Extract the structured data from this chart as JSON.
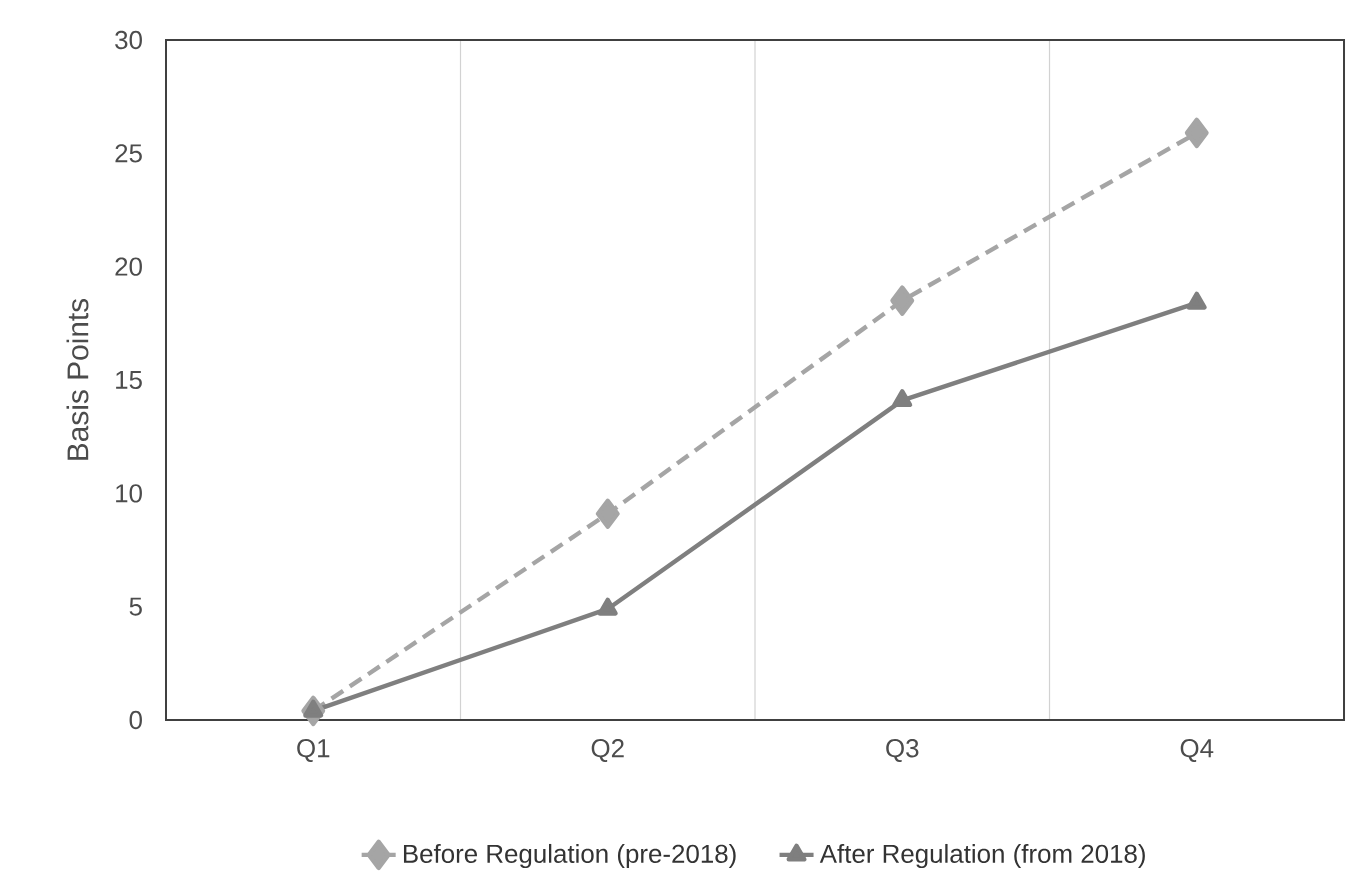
{
  "chart_data": {
    "type": "line",
    "ylabel": "Basis Points",
    "categories": [
      "Q1",
      "Q2",
      "Q3",
      "Q4"
    ],
    "series": [
      {
        "name": "Before Regulation (pre-2018)",
        "color": "#a5a5a5",
        "values": [
          0.4,
          9.1,
          18.5,
          25.9
        ],
        "marker": "diamond",
        "line_style": "dashed"
      },
      {
        "name": "After Regulation (from 2018)",
        "color": "#7f7f7f",
        "values": [
          0.4,
          4.9,
          14.1,
          18.4
        ],
        "marker": "triangle",
        "line_style": "solid"
      }
    ],
    "ylim": [
      0,
      30
    ],
    "yticks": [
      0,
      5,
      10,
      15,
      20,
      25,
      30
    ],
    "grid": "x",
    "legend": "bottom"
  }
}
